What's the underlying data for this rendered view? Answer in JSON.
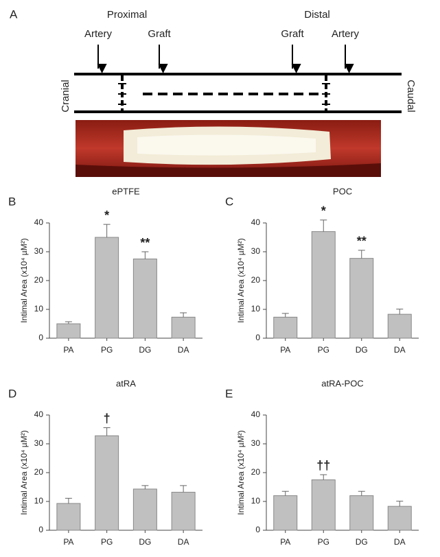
{
  "panel_a": {
    "label": "A",
    "proximal": "Proximal",
    "distal": "Distal",
    "markers": [
      "Artery",
      "Graft",
      "Graft",
      "Artery"
    ],
    "cranial": "Cranial",
    "caudal": "Caudal"
  },
  "chart_data": [
    {
      "type": "bar",
      "panel": "B",
      "title": "ePTFE",
      "y_label": "Intimal Area (x10⁴ µM²)",
      "categories": [
        "PA",
        "PG",
        "DG",
        "DA"
      ],
      "values": [
        5,
        35,
        27.5,
        7.3
      ],
      "errors": [
        0.7,
        4.5,
        2.5,
        1.5
      ],
      "annotations": [
        null,
        "*",
        "**",
        null
      ],
      "color": "#c0c0c0",
      "ylim": [
        0,
        40
      ],
      "yticks": [
        0,
        10,
        20,
        30,
        40
      ]
    },
    {
      "type": "bar",
      "panel": "C",
      "title": "POC",
      "y_label": "Intimal Area (x10⁴ µM²)",
      "categories": [
        "PA",
        "PG",
        "DG",
        "DA"
      ],
      "values": [
        7.3,
        37,
        27.7,
        8.3
      ],
      "errors": [
        1.3,
        4,
        2.8,
        1.8
      ],
      "annotations": [
        null,
        "*",
        "**",
        null
      ],
      "color": "#c0c0c0",
      "ylim": [
        0,
        40
      ],
      "yticks": [
        0,
        10,
        20,
        30,
        40
      ]
    },
    {
      "type": "bar",
      "panel": "D",
      "title": "atRA",
      "y_label": "Intimal Area (x10⁴ µM²)",
      "categories": [
        "PA",
        "PG",
        "DG",
        "DA"
      ],
      "values": [
        9.3,
        32.8,
        14.3,
        13.2
      ],
      "errors": [
        1.8,
        2.8,
        1.2,
        2.3
      ],
      "annotations": [
        null,
        "†",
        null,
        null
      ],
      "color": "#c0c0c0",
      "ylim": [
        0,
        40
      ],
      "yticks": [
        0,
        10,
        20,
        30,
        40
      ]
    },
    {
      "type": "bar",
      "panel": "E",
      "title": "atRA-POC",
      "y_label": "Intimal Area (x10⁴ µM²)",
      "categories": [
        "PA",
        "PG",
        "DG",
        "DA"
      ],
      "values": [
        12,
        17.5,
        12,
        8.3
      ],
      "errors": [
        1.5,
        1.8,
        1.5,
        1.8
      ],
      "annotations": [
        null,
        "††",
        null,
        null
      ],
      "color": "#c0c0c0",
      "ylim": [
        0,
        40
      ],
      "yticks": [
        0,
        10,
        20,
        30,
        40
      ]
    }
  ]
}
